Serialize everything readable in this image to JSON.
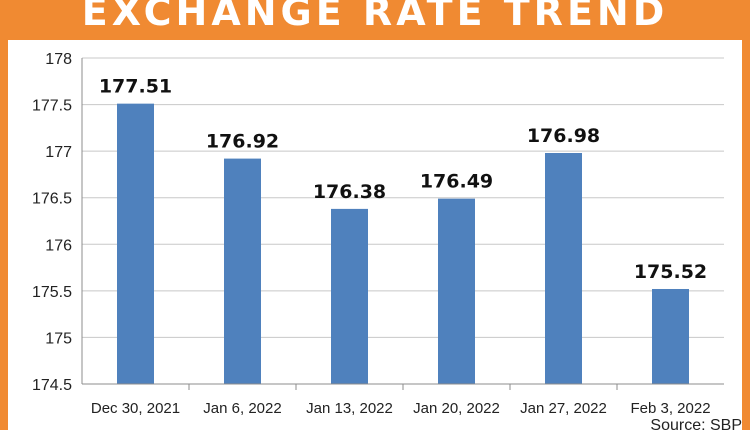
{
  "header": {
    "title": "EXCHANGE RATE TREND"
  },
  "source": "Source: SBP",
  "colors": {
    "frame": "#f08a32",
    "bar": "#4f81bd",
    "grid": "#c8c8c8",
    "axis": "#8c8c8c"
  },
  "chart_data": {
    "type": "bar",
    "title": "",
    "xlabel": "",
    "ylabel": "",
    "categories": [
      "Dec 30, 2021",
      "Jan 6, 2022",
      "Jan 13, 2022",
      "Jan 20, 2022",
      "Jan 27, 2022",
      "Feb 3, 2022"
    ],
    "values": [
      177.51,
      176.92,
      176.38,
      176.49,
      176.98,
      175.52
    ],
    "value_labels": [
      "177.51",
      "176.92",
      "176.38",
      "176.49",
      "176.98",
      "175.52"
    ],
    "ylim": [
      174.5,
      178
    ],
    "yticks": [
      174.5,
      175,
      175.5,
      176,
      176.5,
      177,
      177.5,
      178
    ],
    "ytick_labels": [
      "174.5",
      "175",
      "175.5",
      "176",
      "176.5",
      "177",
      "177.5",
      "178"
    ],
    "grid": true,
    "legend": "none"
  }
}
